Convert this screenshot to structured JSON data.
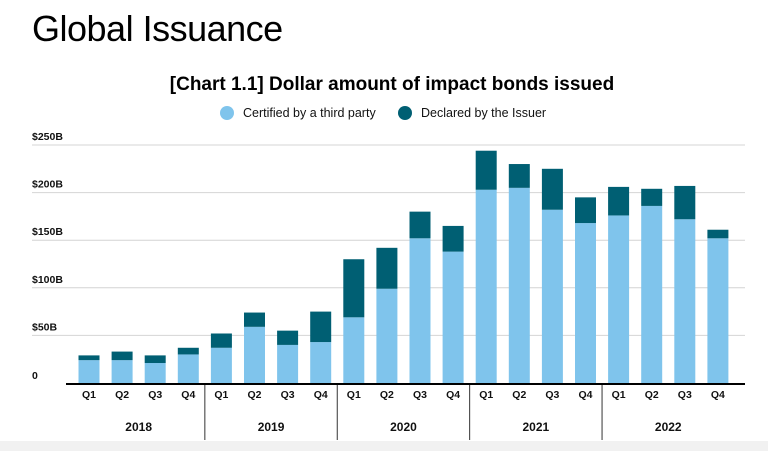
{
  "page": {
    "title": "Global Issuance"
  },
  "chart_data": {
    "type": "bar",
    "stacked": true,
    "title": "[Chart 1.1] Dollar amount of impact bonds issued",
    "legend_position": "top-center",
    "grid": true,
    "colors": {
      "certified": "#7fc4ec",
      "declared": "#005f73",
      "grid": "#d4d4d4",
      "axis": "#000000"
    },
    "y_axis": {
      "ylim": [
        0,
        250
      ],
      "ticks": [
        0,
        50,
        100,
        150,
        200,
        250
      ],
      "tick_labels": [
        "0",
        "$50B",
        "$100B",
        "$150B",
        "$200B",
        "$250B"
      ]
    },
    "categories": [
      "Q1",
      "Q2",
      "Q3",
      "Q4",
      "Q1",
      "Q2",
      "Q3",
      "Q4",
      "Q1",
      "Q2",
      "Q3",
      "Q4",
      "Q1",
      "Q2",
      "Q3",
      "Q4",
      "Q1",
      "Q2",
      "Q3",
      "Q4"
    ],
    "years": [
      "2018",
      "2019",
      "2020",
      "2021",
      "2022"
    ],
    "series": [
      {
        "name": "Certified by a third party",
        "color": "#7fc4ec",
        "values": [
          24,
          24,
          21,
          30,
          37,
          59,
          40,
          43,
          69,
          99,
          152,
          138,
          203,
          205,
          182,
          168,
          176,
          186,
          172,
          152
        ]
      },
      {
        "name": "Declared by the Issuer",
        "color": "#005f73",
        "values": [
          5,
          9,
          8,
          7,
          15,
          15,
          15,
          32,
          61,
          43,
          28,
          27,
          41,
          25,
          43,
          27,
          30,
          18,
          35,
          9
        ]
      }
    ]
  }
}
